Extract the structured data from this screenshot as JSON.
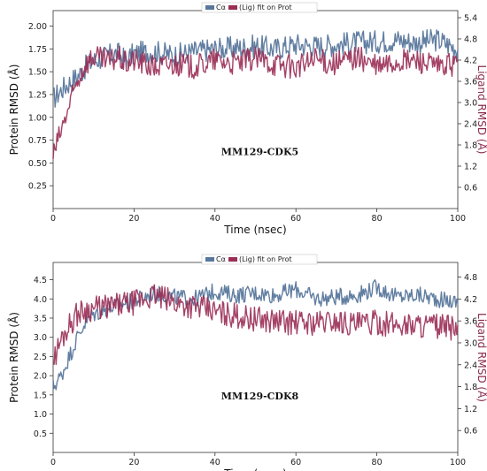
{
  "colors": {
    "protein": "#59779c",
    "ligand": "#9a2e55"
  },
  "chart_data": [
    {
      "type": "line",
      "legend": [
        "Cα",
        "(Lig) fit on Prot"
      ],
      "legend_placement": "top-center",
      "annotation": "MM129-CDK5",
      "xlabel": "Time (nsec)",
      "ylabel": "Protein RMSD (Å)",
      "y2label": "Ligand RMSD (Å)",
      "xlim": [
        0,
        100
      ],
      "ylim": [
        0,
        2.17
      ],
      "y2lim": [
        0,
        5.6
      ],
      "x_ticks": [
        "0",
        "20",
        "40",
        "60",
        "80",
        "100"
      ],
      "y_ticks": [
        "0.25",
        "0.50",
        "0.75",
        "1.00",
        "1.25",
        "1.50",
        "1.75",
        "2.00"
      ],
      "y2_ticks": [
        "0.6",
        "1.2",
        "1.8",
        "2.4",
        "3.0",
        "3.6",
        "4.2",
        "4.8",
        "5.4"
      ],
      "series": [
        {
          "name": "Cα",
          "axis": "left",
          "x": [
            0,
            2,
            4,
            6,
            8,
            10,
            12,
            14,
            16,
            18,
            20,
            25,
            30,
            35,
            40,
            45,
            50,
            55,
            60,
            65,
            70,
            75,
            80,
            85,
            90,
            95,
            100
          ],
          "y": [
            1.2,
            1.3,
            1.38,
            1.45,
            1.55,
            1.62,
            1.65,
            1.68,
            1.7,
            1.62,
            1.7,
            1.72,
            1.68,
            1.72,
            1.75,
            1.76,
            1.78,
            1.75,
            1.8,
            1.78,
            1.8,
            1.82,
            1.83,
            1.85,
            1.82,
            1.85,
            1.75
          ]
        },
        {
          "name": "(Lig) fit on Prot",
          "axis": "right",
          "x": [
            0,
            2,
            4,
            6,
            8,
            10,
            12,
            14,
            16,
            18,
            20,
            25,
            30,
            35,
            40,
            45,
            50,
            55,
            60,
            65,
            70,
            75,
            80,
            85,
            90,
            95,
            100
          ],
          "y": [
            1.5,
            2.2,
            2.9,
            3.6,
            4.1,
            4.3,
            4.2,
            4.15,
            4.3,
            4.1,
            4.2,
            4.0,
            4.1,
            4.0,
            4.2,
            4.1,
            4.25,
            4.1,
            4.0,
            4.2,
            4.1,
            4.3,
            4.0,
            4.15,
            4.2,
            4.0,
            4.1
          ]
        }
      ]
    },
    {
      "type": "line",
      "legend": [
        "Cα",
        "(Lig) fit on Prot"
      ],
      "legend_placement": "top-center",
      "annotation": "MM129-CDK8",
      "xlabel": "Time (nsec)",
      "ylabel": "Protein RMSD (Å)",
      "y2label": "Ligand RMSD (Å)",
      "xlim": [
        0,
        100
      ],
      "ylim": [
        0,
        4.95
      ],
      "y2lim": [
        0,
        5.2
      ],
      "x_ticks": [
        "0",
        "20",
        "40",
        "60",
        "80",
        "100"
      ],
      "y_ticks": [
        "0.5",
        "1.0",
        "1.5",
        "2.0",
        "2.5",
        "3.0",
        "3.5",
        "4.0",
        "4.5"
      ],
      "y2_ticks": [
        "0.6",
        "1.2",
        "1.8",
        "2.4",
        "3.0",
        "3.6",
        "4.2",
        "4.8"
      ],
      "series": [
        {
          "name": "Cα",
          "axis": "left",
          "x": [
            0,
            2,
            4,
            6,
            8,
            10,
            15,
            20,
            25,
            30,
            35,
            40,
            45,
            50,
            55,
            60,
            65,
            70,
            75,
            80,
            85,
            90,
            95,
            100
          ],
          "y": [
            1.7,
            2.0,
            2.5,
            3.0,
            3.4,
            3.6,
            3.8,
            3.95,
            4.15,
            4.05,
            4.0,
            4.2,
            4.1,
            4.15,
            4.1,
            4.25,
            4.0,
            4.05,
            4.1,
            4.3,
            4.05,
            4.1,
            4.0,
            3.9
          ]
        },
        {
          "name": "(Lig) fit on Prot",
          "axis": "right",
          "x": [
            0,
            2,
            4,
            6,
            8,
            10,
            15,
            20,
            25,
            30,
            35,
            40,
            45,
            50,
            55,
            60,
            65,
            70,
            75,
            80,
            85,
            90,
            95,
            100
          ],
          "y": [
            2.5,
            3.1,
            3.5,
            3.8,
            3.9,
            3.95,
            4.0,
            4.1,
            4.3,
            4.1,
            4.0,
            3.85,
            3.75,
            3.65,
            3.6,
            3.55,
            3.55,
            3.6,
            3.5,
            3.55,
            3.5,
            3.5,
            3.45,
            3.4
          ]
        }
      ]
    }
  ]
}
